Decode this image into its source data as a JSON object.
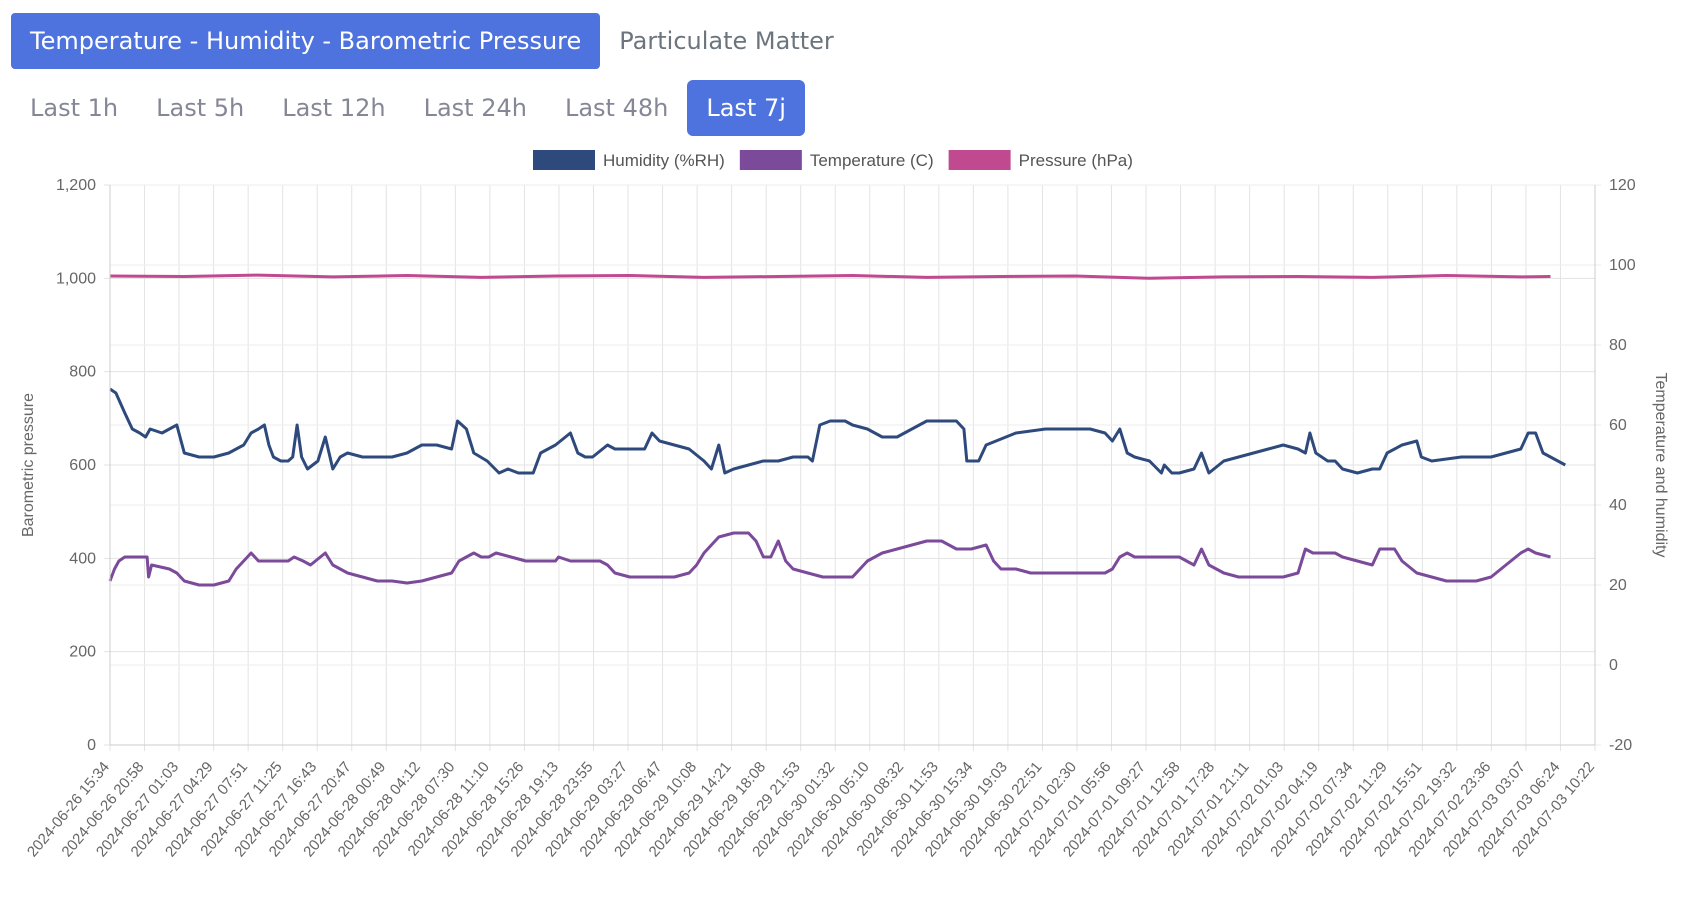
{
  "tabs": [
    {
      "label": "Temperature - Humidity - Barometric Pressure",
      "active": true
    },
    {
      "label": "Particulate Matter",
      "active": false
    }
  ],
  "ranges": [
    {
      "label": "Last 1h",
      "active": false
    },
    {
      "label": "Last 5h",
      "active": false
    },
    {
      "label": "Last 12h",
      "active": false
    },
    {
      "label": "Last 24h",
      "active": false
    },
    {
      "label": "Last 48h",
      "active": false
    },
    {
      "label": "Last 7j",
      "active": true
    }
  ],
  "colors": {
    "accent": "#4e73df",
    "humidity": "#2e4a7d",
    "temperature": "#7b4a9a",
    "pressure": "#c0498f"
  },
  "chart_data": {
    "type": "line",
    "left_axis": {
      "label": "Barometric pressure",
      "ticks": [
        "0",
        "200",
        "400",
        "600",
        "800",
        "1,000",
        "1,200"
      ],
      "range": [
        0,
        1200
      ]
    },
    "right_axis": {
      "label": "Temperature and humidity",
      "ticks": [
        "-20",
        "0",
        "20",
        "40",
        "60",
        "80",
        "100",
        "120"
      ],
      "range": [
        -20,
        120
      ]
    },
    "legend": {
      "position": "top-center"
    },
    "grid": true,
    "x_labels": [
      "2024-06-26 15:34",
      "2024-06-26 20:58",
      "2024-06-27 01:03",
      "2024-06-27 04:29",
      "2024-06-27 07:51",
      "2024-06-27 11:25",
      "2024-06-27 16:43",
      "2024-06-27 20:47",
      "2024-06-28 00:49",
      "2024-06-28 04:12",
      "2024-06-28 07:30",
      "2024-06-28 11:10",
      "2024-06-28 15:26",
      "2024-06-28 19:13",
      "2024-06-28 23:55",
      "2024-06-29 03:27",
      "2024-06-29 06:47",
      "2024-06-29 10:08",
      "2024-06-29 14:21",
      "2024-06-29 18:08",
      "2024-06-29 21:53",
      "2024-06-30 01:32",
      "2024-06-30 05:10",
      "2024-06-30 08:32",
      "2024-06-30 11:53",
      "2024-06-30 15:34",
      "2024-06-30 19:03",
      "2024-06-30 22:51",
      "2024-07-01 02:30",
      "2024-07-01 05:56",
      "2024-07-01 09:27",
      "2024-07-01 12:58",
      "2024-07-01 17:28",
      "2024-07-01 21:11",
      "2024-07-02 01:03",
      "2024-07-02 04:19",
      "2024-07-02 07:34",
      "2024-07-02 11:29",
      "2024-07-02 15:51",
      "2024-07-02 19:32",
      "2024-07-02 23:36",
      "2024-07-03 03:07",
      "2024-07-03 06:24",
      "2024-07-03 10:22"
    ],
    "series": [
      {
        "name": "Humidity (%RH)",
        "axis": "right",
        "values": [
          [
            0,
            69
          ],
          [
            0.4,
            68
          ],
          [
            1,
            63
          ],
          [
            1.5,
            59
          ],
          [
            2,
            58
          ],
          [
            2.4,
            57
          ],
          [
            2.7,
            59
          ],
          [
            3.5,
            58
          ],
          [
            4.5,
            60
          ],
          [
            5,
            53
          ],
          [
            6,
            52
          ],
          [
            7,
            52
          ],
          [
            8,
            53
          ],
          [
            8.5,
            54
          ],
          [
            9,
            55
          ],
          [
            9.5,
            58
          ],
          [
            10,
            59
          ],
          [
            10.4,
            60
          ],
          [
            10.7,
            55
          ],
          [
            11,
            52
          ],
          [
            11.5,
            51
          ],
          [
            12,
            51
          ],
          [
            12.3,
            52
          ],
          [
            12.6,
            60
          ],
          [
            12.9,
            52
          ],
          [
            13.3,
            49
          ],
          [
            14,
            51
          ],
          [
            14.5,
            57
          ],
          [
            15,
            49
          ],
          [
            15.5,
            52
          ],
          [
            16,
            53
          ],
          [
            17,
            52
          ],
          [
            18,
            52
          ],
          [
            19,
            52
          ],
          [
            20,
            53
          ],
          [
            21,
            55
          ],
          [
            22,
            55
          ],
          [
            23,
            54
          ],
          [
            23.4,
            61
          ],
          [
            24,
            59
          ],
          [
            24.5,
            53
          ],
          [
            25.4,
            51
          ],
          [
            26.2,
            48
          ],
          [
            26.8,
            49
          ],
          [
            27.5,
            48
          ],
          [
            28.5,
            48
          ],
          [
            29,
            53
          ],
          [
            30,
            55
          ],
          [
            31,
            58
          ],
          [
            31.5,
            53
          ],
          [
            32,
            52
          ],
          [
            32.5,
            52
          ],
          [
            33.5,
            55
          ],
          [
            34,
            54
          ],
          [
            35,
            54
          ],
          [
            36,
            54
          ],
          [
            36.5,
            58
          ],
          [
            37,
            56
          ],
          [
            38,
            55
          ],
          [
            39,
            54
          ],
          [
            40,
            51
          ],
          [
            40.5,
            49
          ],
          [
            41,
            55
          ],
          [
            41.4,
            48
          ],
          [
            42,
            49
          ],
          [
            43,
            50
          ],
          [
            44,
            51
          ],
          [
            45,
            51
          ],
          [
            46,
            52
          ],
          [
            47,
            52
          ],
          [
            47.3,
            51
          ],
          [
            47.8,
            60
          ],
          [
            48.5,
            61
          ],
          [
            49.5,
            61
          ],
          [
            50,
            60
          ],
          [
            51,
            59
          ],
          [
            52,
            57
          ],
          [
            53,
            57
          ],
          [
            54,
            59
          ],
          [
            55,
            61
          ],
          [
            56,
            61
          ],
          [
            57,
            61
          ],
          [
            57.5,
            59
          ],
          [
            57.7,
            51
          ],
          [
            58.5,
            51
          ],
          [
            59,
            55
          ],
          [
            61,
            58
          ],
          [
            63,
            59
          ],
          [
            65,
            59
          ],
          [
            66,
            59
          ],
          [
            67,
            58
          ],
          [
            67.5,
            56
          ],
          [
            68,
            59
          ],
          [
            68.5,
            53
          ],
          [
            69,
            52
          ],
          [
            70,
            51
          ],
          [
            70.8,
            48
          ],
          [
            71,
            50
          ],
          [
            71.5,
            48
          ],
          [
            72,
            48
          ],
          [
            73,
            49
          ],
          [
            73.5,
            53
          ],
          [
            74,
            48
          ],
          [
            75,
            51
          ],
          [
            76,
            52
          ],
          [
            77,
            53
          ],
          [
            78,
            54
          ],
          [
            79,
            55
          ],
          [
            80,
            54
          ],
          [
            80.5,
            53
          ],
          [
            80.8,
            58
          ],
          [
            81.2,
            53
          ],
          [
            82,
            51
          ],
          [
            82.5,
            51
          ],
          [
            83,
            49
          ],
          [
            84,
            48
          ],
          [
            85,
            49
          ],
          [
            85.5,
            49
          ],
          [
            86,
            53
          ],
          [
            87,
            55
          ],
          [
            88,
            56
          ],
          [
            88.3,
            52
          ],
          [
            89,
            51
          ],
          [
            91,
            52
          ],
          [
            93,
            52
          ],
          [
            94,
            53
          ],
          [
            95,
            54
          ],
          [
            95.5,
            58
          ],
          [
            96,
            58
          ],
          [
            96.5,
            53
          ],
          [
            97,
            52
          ],
          [
            98,
            50
          ]
        ]
      },
      {
        "name": "Temperature (C)",
        "axis": "right",
        "values": [
          [
            0,
            21
          ],
          [
            0.3,
            24
          ],
          [
            0.6,
            26
          ],
          [
            1,
            27
          ],
          [
            2.5,
            27
          ],
          [
            2.6,
            22
          ],
          [
            2.8,
            25
          ],
          [
            4,
            24
          ],
          [
            4.5,
            23
          ],
          [
            5,
            21
          ],
          [
            6,
            20
          ],
          [
            7,
            20
          ],
          [
            8,
            21
          ],
          [
            8.5,
            24
          ],
          [
            9,
            26
          ],
          [
            9.5,
            28
          ],
          [
            10,
            26
          ],
          [
            11,
            26
          ],
          [
            12,
            26
          ],
          [
            12.4,
            27
          ],
          [
            13,
            26
          ],
          [
            13.5,
            25
          ],
          [
            14.5,
            28
          ],
          [
            15,
            25
          ],
          [
            16,
            23
          ],
          [
            17,
            22
          ],
          [
            18,
            21
          ],
          [
            19,
            21
          ],
          [
            20,
            20.5
          ],
          [
            21,
            21
          ],
          [
            22,
            22
          ],
          [
            23,
            23
          ],
          [
            23.5,
            26
          ],
          [
            24.5,
            28
          ],
          [
            25,
            27
          ],
          [
            25.5,
            27
          ],
          [
            26,
            28
          ],
          [
            27,
            27
          ],
          [
            28,
            26
          ],
          [
            29,
            26
          ],
          [
            30,
            26
          ],
          [
            30.2,
            27
          ],
          [
            31,
            26
          ],
          [
            32,
            26
          ],
          [
            33,
            26
          ],
          [
            33.5,
            25
          ],
          [
            34,
            23
          ],
          [
            35,
            22
          ],
          [
            36,
            22
          ],
          [
            37,
            22
          ],
          [
            38,
            22
          ],
          [
            39,
            23
          ],
          [
            39.5,
            25
          ],
          [
            40,
            28
          ],
          [
            41,
            32
          ],
          [
            42,
            33
          ],
          [
            43,
            33
          ],
          [
            43.5,
            31
          ],
          [
            44,
            27
          ],
          [
            44.5,
            27
          ],
          [
            45,
            31
          ],
          [
            45.5,
            26
          ],
          [
            46,
            24
          ],
          [
            47,
            23
          ],
          [
            48,
            22
          ],
          [
            49,
            22
          ],
          [
            50,
            22
          ],
          [
            51,
            26
          ],
          [
            52,
            28
          ],
          [
            53,
            29
          ],
          [
            54,
            30
          ],
          [
            55,
            31
          ],
          [
            56,
            31
          ],
          [
            56.5,
            30
          ],
          [
            57,
            29
          ],
          [
            58,
            29
          ],
          [
            59,
            30
          ],
          [
            59.5,
            26
          ],
          [
            60,
            24
          ],
          [
            61,
            24
          ],
          [
            62,
            23
          ],
          [
            63,
            23
          ],
          [
            64,
            23
          ],
          [
            65,
            23
          ],
          [
            66,
            23
          ],
          [
            67,
            23
          ],
          [
            67.5,
            24
          ],
          [
            68,
            27
          ],
          [
            68.5,
            28
          ],
          [
            69,
            27
          ],
          [
            70,
            27
          ],
          [
            71,
            27
          ],
          [
            72,
            27
          ],
          [
            73,
            25
          ],
          [
            73.5,
            29
          ],
          [
            74,
            25
          ],
          [
            75,
            23
          ],
          [
            76,
            22
          ],
          [
            77,
            22
          ],
          [
            78,
            22
          ],
          [
            79,
            22
          ],
          [
            80,
            23
          ],
          [
            80.5,
            29
          ],
          [
            81,
            28
          ],
          [
            82,
            28
          ],
          [
            82.5,
            28
          ],
          [
            83,
            27
          ],
          [
            84,
            26
          ],
          [
            85,
            25
          ],
          [
            85.5,
            29
          ],
          [
            86,
            29
          ],
          [
            86.5,
            29
          ],
          [
            87,
            26
          ],
          [
            88,
            23
          ],
          [
            89,
            22
          ],
          [
            90,
            21
          ],
          [
            91,
            21
          ],
          [
            92,
            21
          ],
          [
            93,
            22
          ],
          [
            94,
            25
          ],
          [
            95,
            28
          ],
          [
            95.5,
            29
          ],
          [
            96,
            28
          ],
          [
            97,
            27
          ]
        ]
      },
      {
        "name": "Pressure (hPa)",
        "axis": "left",
        "values": [
          [
            0,
            1005
          ],
          [
            5,
            1004
          ],
          [
            10,
            1007
          ],
          [
            15,
            1003
          ],
          [
            20,
            1006
          ],
          [
            25,
            1002
          ],
          [
            30,
            1005
          ],
          [
            35,
            1006
          ],
          [
            40,
            1002
          ],
          [
            45,
            1004
          ],
          [
            50,
            1006
          ],
          [
            55,
            1002
          ],
          [
            60,
            1004
          ],
          [
            65,
            1005
          ],
          [
            70,
            1000
          ],
          [
            75,
            1003
          ],
          [
            80,
            1004
          ],
          [
            85,
            1002
          ],
          [
            90,
            1006
          ],
          [
            95,
            1003
          ],
          [
            97,
            1004
          ]
        ]
      }
    ]
  }
}
